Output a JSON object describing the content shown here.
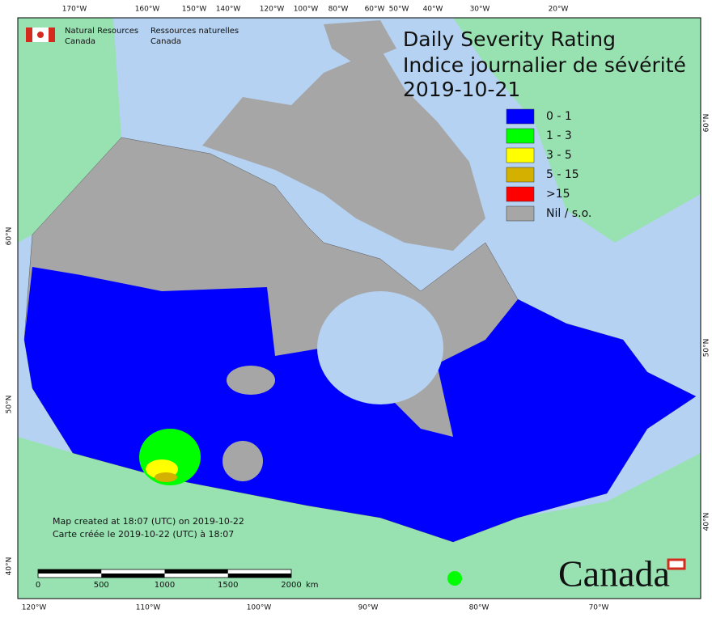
{
  "agency": {
    "en_line1": "Natural Resources",
    "en_line2": "Canada",
    "fr_line1": "Ressources naturelles",
    "fr_line2": "Canada"
  },
  "title": {
    "line1": "Daily Severity Rating",
    "line2": "Indice journalier de sévérité",
    "date": "2019-10-21"
  },
  "legend": [
    {
      "label": "0 - 1",
      "color": "#0000ff"
    },
    {
      "label": "1 - 3",
      "color": "#00ff00"
    },
    {
      "label": "3 - 5",
      "color": "#ffff00"
    },
    {
      "label": "5 - 15",
      "color": "#d4b000"
    },
    {
      "label": ">15",
      "color": "#ff0000"
    },
    {
      "label": "Nil / s.o.",
      "color": "#a6a6a6"
    }
  ],
  "notes": [
    "Map created at 18:07 (UTC) on 2019-10-22",
    "Carte créée le 2019-10-22 (UTC) à 18:07"
  ],
  "scale": {
    "labels": [
      0,
      500,
      1000,
      1500,
      2000
    ],
    "unit": "km"
  },
  "graticule": {
    "top": [
      "170°W",
      "160°W",
      "150°W",
      "140°W",
      "120°W",
      "100°W",
      "80°W",
      "60°W",
      "50°W",
      "40°W",
      "30°W",
      "20°W"
    ],
    "bottom": [
      "120°W",
      "110°W",
      "100°W",
      "90°W",
      "80°W",
      "70°W"
    ],
    "left": [
      "60°N",
      "50°N",
      "40°N"
    ],
    "right": [
      "60°N",
      "50°N",
      "40°N"
    ]
  },
  "wordmark": "Canada"
}
